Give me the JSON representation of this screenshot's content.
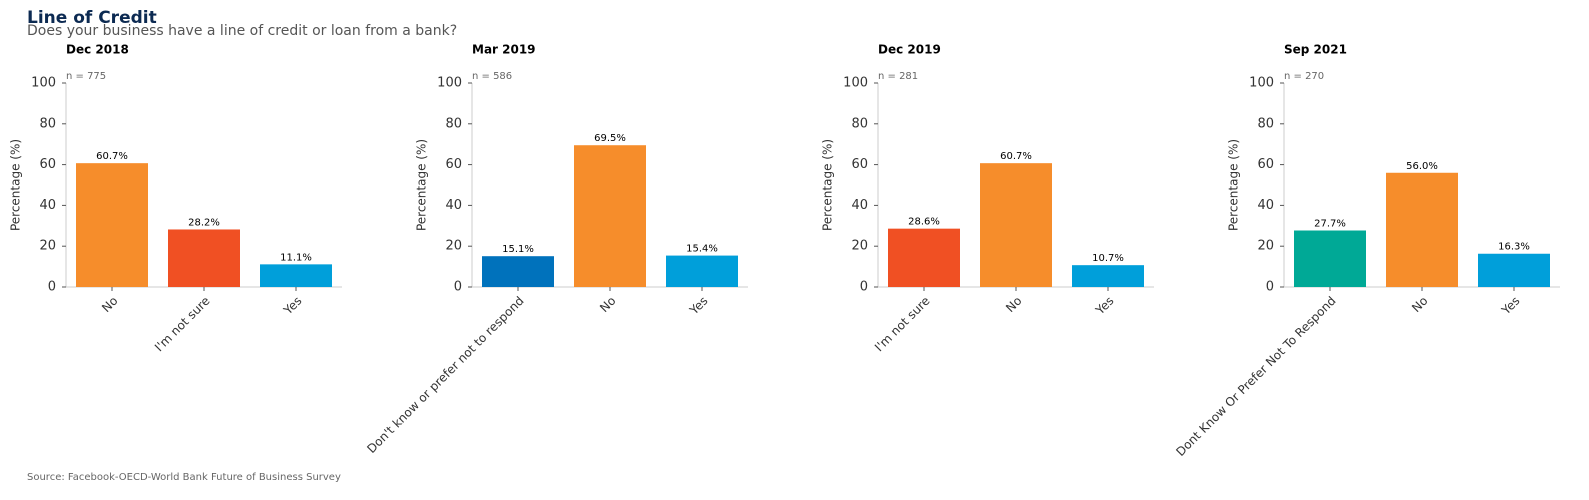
{
  "title": "Line of Credit",
  "subtitle": "Does your business have a line of credit or loan from a bank?",
  "source": "Source: Facebook-OECD-World Bank Future of Business Survey",
  "chart_data": [
    {
      "type": "bar",
      "title": "Dec 2018",
      "note": "n = 775",
      "ylabel": "Percentage (%)",
      "categories": [
        "No",
        "I'm not sure",
        "Yes"
      ],
      "values": [
        60.7,
        28.2,
        11.1
      ],
      "value_labels": [
        "60.7%",
        "28.2%",
        "11.1%"
      ],
      "colors": [
        "#f68d2b",
        "#f05023",
        "#009fda"
      ],
      "ylim": [
        0,
        100
      ],
      "yticks": [
        0,
        20,
        40,
        60,
        80,
        100
      ]
    },
    {
      "type": "bar",
      "title": "Mar 2019",
      "note": "n = 586",
      "ylabel": "Percentage (%)",
      "categories": [
        "Don't know or prefer not to respond",
        "No",
        "Yes"
      ],
      "values": [
        15.1,
        69.5,
        15.4
      ],
      "value_labels": [
        "15.1%",
        "69.5%",
        "15.4%"
      ],
      "colors": [
        "#0072bc",
        "#f68d2b",
        "#009fda"
      ],
      "ylim": [
        0,
        100
      ],
      "yticks": [
        0,
        20,
        40,
        60,
        80,
        100
      ]
    },
    {
      "type": "bar",
      "title": "Dec 2019",
      "note": "n = 281",
      "ylabel": "Percentage (%)",
      "categories": [
        "I'm not sure",
        "No",
        "Yes"
      ],
      "values": [
        28.6,
        60.7,
        10.7
      ],
      "value_labels": [
        "28.6%",
        "60.7%",
        "10.7%"
      ],
      "colors": [
        "#f05023",
        "#f68d2b",
        "#009fda"
      ],
      "ylim": [
        0,
        100
      ],
      "yticks": [
        0,
        20,
        40,
        60,
        80,
        100
      ]
    },
    {
      "type": "bar",
      "title": "Sep 2021",
      "note": "n = 270",
      "ylabel": "Percentage (%)",
      "categories": [
        "Dont Know Or Prefer Not To Respond",
        "No",
        "Yes"
      ],
      "values": [
        27.7,
        56.0,
        16.3
      ],
      "value_labels": [
        "27.7%",
        "56.0%",
        "16.3%"
      ],
      "colors": [
        "#00a996",
        "#f68d2b",
        "#009fda"
      ],
      "ylim": [
        0,
        100
      ],
      "yticks": [
        0,
        20,
        40,
        60,
        80,
        100
      ]
    }
  ]
}
